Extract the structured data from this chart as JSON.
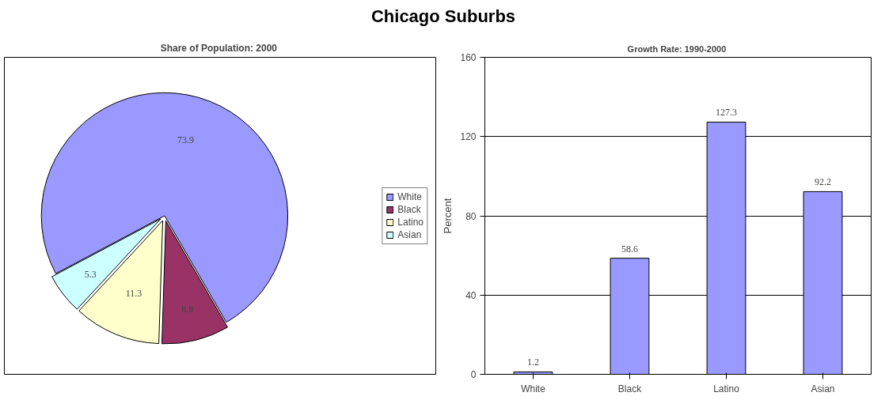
{
  "chart_data": [
    {
      "type": "pie",
      "title": "Chicago Suburbs",
      "subtitle": "Share of Population:  2000",
      "categories": [
        "White",
        "Black",
        "Latino",
        "Asian"
      ],
      "values": [
        73.9,
        8.8,
        11.3,
        5.3
      ],
      "colors": [
        "#9999ff",
        "#993366",
        "#ffffcc",
        "#ccffff"
      ],
      "data_labels": true,
      "legend": "right"
    },
    {
      "type": "bar",
      "title": "Growth Rate:  1990-2000",
      "ylabel": "Percent",
      "categories": [
        "White",
        "Black",
        "Latino",
        "Asian"
      ],
      "values": [
        1.2,
        58.6,
        127.3,
        92.2
      ],
      "color": "#9999ff",
      "ylim": [
        0,
        160
      ],
      "yticks": [
        0,
        40,
        80,
        120,
        160
      ],
      "grid": "y",
      "data_labels": true
    }
  ]
}
